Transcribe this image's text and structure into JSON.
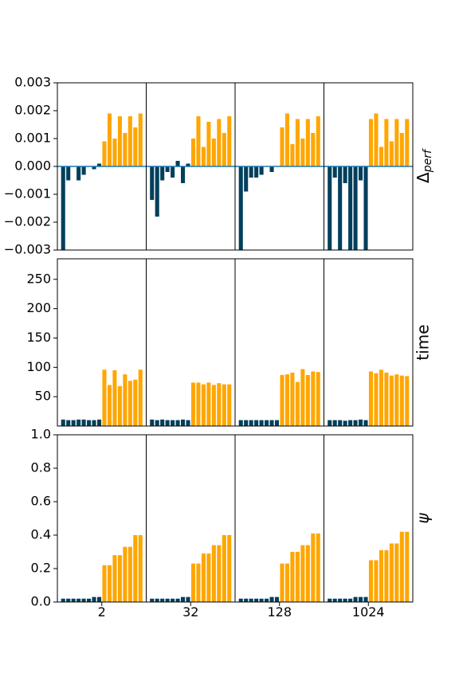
{
  "colors": {
    "bar_low": "#003f5c",
    "bar_high": "#ffa600",
    "zero_line": "#1f77b4",
    "frame": "#000000"
  },
  "groups": [
    "2",
    "32",
    "128",
    "1024"
  ],
  "chart_data": [
    {
      "type": "bar",
      "ylabel": "Δ",
      "ylabel_sub": "perf",
      "ylim": [
        -0.003,
        0.003
      ],
      "yticks": [
        -0.003,
        -0.002,
        -0.001,
        0.0,
        0.001,
        0.002,
        0.003
      ],
      "ytick_labels": [
        "−0.003",
        "−0.002",
        "−0.001",
        "0.000",
        "0.001",
        "0.002",
        "0.003"
      ],
      "zero_line": true,
      "series": [
        {
          "group": "2",
          "low": [
            -0.003,
            -0.0005,
            0.0,
            -0.0005,
            -0.0003,
            0.0,
            -0.0001,
            0.0001
          ],
          "high": [
            0.0009,
            0.0019,
            0.001,
            0.0018,
            0.0012,
            0.0018,
            0.0014,
            0.0019
          ]
        },
        {
          "group": "32",
          "low": [
            -0.0012,
            -0.0018,
            -0.0005,
            -0.0002,
            -0.0004,
            0.0002,
            -0.0006,
            0.0001
          ],
          "high": [
            0.001,
            0.0018,
            0.0007,
            0.0016,
            0.001,
            0.0017,
            0.0012,
            0.0018
          ]
        },
        {
          "group": "128",
          "low": [
            -0.003,
            -0.0009,
            -0.0004,
            -0.0004,
            -0.0003,
            0.0,
            -0.0002,
            0.0
          ],
          "high": [
            0.0014,
            0.0019,
            0.0008,
            0.0017,
            0.001,
            0.0017,
            0.0012,
            0.0018
          ]
        },
        {
          "group": "1024",
          "low": [
            -0.003,
            -0.0004,
            -0.003,
            -0.0006,
            -0.003,
            -0.003,
            -0.0005,
            -0.003
          ],
          "high": [
            0.0017,
            0.0019,
            0.0007,
            0.0017,
            0.0009,
            0.0017,
            0.0012,
            0.0017
          ]
        }
      ]
    },
    {
      "type": "bar",
      "ylabel": "time",
      "ylim": [
        0,
        285
      ],
      "yticks": [
        50,
        100,
        150,
        200,
        250
      ],
      "ytick_labels": [
        "50",
        "100",
        "150",
        "200",
        "250"
      ],
      "series": [
        {
          "group": "2",
          "low": [
            11,
            10,
            10,
            11,
            11,
            10,
            10,
            11
          ],
          "high": [
            96,
            70,
            95,
            68,
            88,
            77,
            79,
            96
          ]
        },
        {
          "group": "32",
          "low": [
            11,
            10,
            11,
            10,
            10,
            10,
            11,
            10
          ],
          "high": [
            74,
            74,
            71,
            74,
            70,
            73,
            71,
            71
          ]
        },
        {
          "group": "128",
          "low": [
            10,
            10,
            10,
            10,
            10,
            10,
            10,
            10
          ],
          "high": [
            87,
            88,
            91,
            75,
            97,
            87,
            93,
            92
          ]
        },
        {
          "group": "1024",
          "low": [
            10,
            10,
            10,
            9,
            10,
            10,
            11,
            10
          ],
          "high": [
            93,
            90,
            96,
            91,
            86,
            88,
            86,
            85
          ]
        }
      ]
    },
    {
      "type": "bar",
      "ylabel": "ψ",
      "ylim": [
        0,
        1.0
      ],
      "yticks": [
        0.0,
        0.2,
        0.4,
        0.6,
        0.8,
        1.0
      ],
      "ytick_labels": [
        "0.0",
        "0.2",
        "0.4",
        "0.6",
        "0.8",
        "1.0"
      ],
      "show_xticks": true,
      "series": [
        {
          "group": "2",
          "low": [
            0.02,
            0.02,
            0.02,
            0.02,
            0.02,
            0.02,
            0.03,
            0.03
          ],
          "high": [
            0.22,
            0.22,
            0.28,
            0.28,
            0.33,
            0.33,
            0.4,
            0.4
          ]
        },
        {
          "group": "32",
          "low": [
            0.02,
            0.02,
            0.02,
            0.02,
            0.02,
            0.02,
            0.03,
            0.03
          ],
          "high": [
            0.23,
            0.23,
            0.29,
            0.29,
            0.34,
            0.34,
            0.4,
            0.4
          ]
        },
        {
          "group": "128",
          "low": [
            0.02,
            0.02,
            0.02,
            0.02,
            0.02,
            0.02,
            0.03,
            0.03
          ],
          "high": [
            0.23,
            0.23,
            0.3,
            0.3,
            0.34,
            0.34,
            0.41,
            0.41
          ]
        },
        {
          "group": "1024",
          "low": [
            0.02,
            0.02,
            0.02,
            0.02,
            0.02,
            0.03,
            0.03,
            0.03
          ],
          "high": [
            0.25,
            0.25,
            0.31,
            0.31,
            0.35,
            0.35,
            0.42,
            0.42
          ]
        }
      ]
    }
  ]
}
